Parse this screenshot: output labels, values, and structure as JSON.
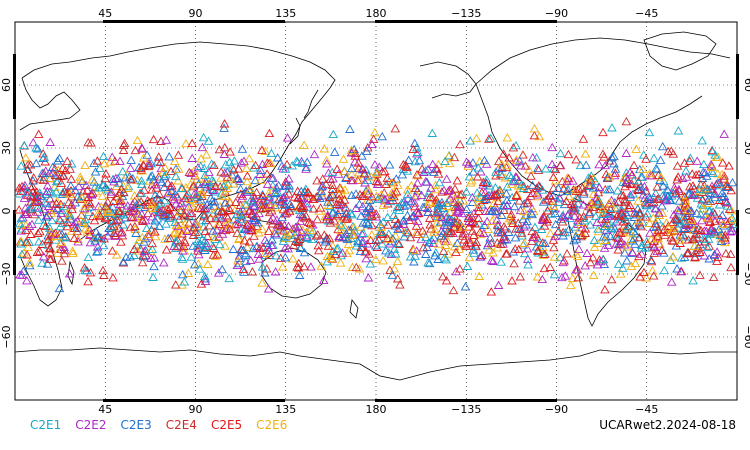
{
  "map": {
    "type": "observation-locations",
    "projection": "cylindrical-equidistant",
    "lon_center": 180,
    "lat_range": [
      -90,
      90
    ],
    "lon_ticks_top": [
      "45",
      "90",
      "135",
      "180",
      "−135",
      "−90",
      "−45"
    ],
    "lon_ticks_bottom": [
      "45",
      "90",
      "135",
      "180",
      "−135",
      "−90",
      "−45"
    ],
    "lat_ticks_left": [
      "60",
      "30",
      "0",
      "−30",
      "−60"
    ],
    "lat_ticks_right": [
      "60",
      "30",
      "0",
      "−30",
      "−60"
    ],
    "grid": "dotted",
    "marker": "open-triangle"
  },
  "legend": [
    {
      "label": "C2E1",
      "color": "#17a9c9"
    },
    {
      "label": "C2E2",
      "color": "#b025c8"
    },
    {
      "label": "C2E3",
      "color": "#1f6fd1"
    },
    {
      "label": "C2E4",
      "color": "#cc2b2b"
    },
    {
      "label": "C2E5",
      "color": "#e0191d"
    },
    {
      "label": "C2E6",
      "color": "#f2b010"
    }
  ],
  "product_label": "UCARwet2.2024-08-18"
}
